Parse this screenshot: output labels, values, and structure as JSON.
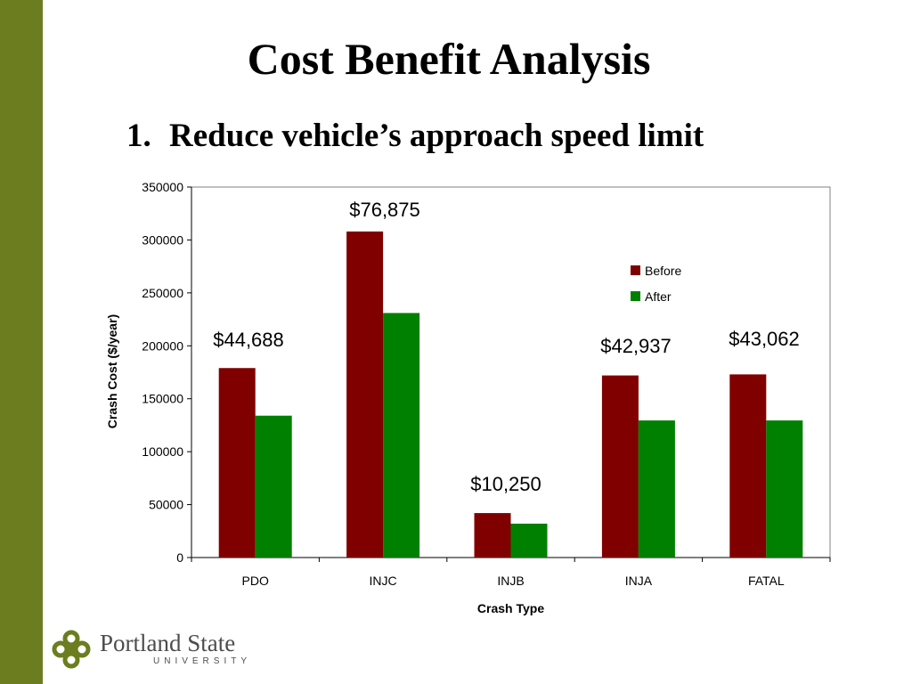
{
  "slide": {
    "title": "Cost Benefit Analysis",
    "subtitle_number": "1.",
    "subtitle": "Reduce vehicle’s approach speed limit"
  },
  "logo": {
    "name": "Portland State",
    "sub": "UNIVERSITY",
    "colors": {
      "mark": "#6b7d1f",
      "bar": "#6b7d1f"
    }
  },
  "chart_data": {
    "type": "bar",
    "categories": [
      "PDO",
      "INJC",
      "INJB",
      "INJA",
      "FATAL"
    ],
    "series": [
      {
        "name": "Before",
        "color": "#800000",
        "values": [
          179000,
          308000,
          42000,
          172000,
          173000
        ]
      },
      {
        "name": "After",
        "color": "#008000",
        "values": [
          134000,
          231000,
          32000,
          129500,
          129500
        ]
      }
    ],
    "annotations": [
      "$44,688",
      "$76,875",
      "$10,250",
      "$42,937",
      "$43,062"
    ],
    "xlabel": "Crash Type",
    "ylabel": "Crash Cost ($/year)",
    "ylim": [
      0,
      350000
    ],
    "yticks": [
      0,
      50000,
      100000,
      150000,
      200000,
      250000,
      300000,
      350000
    ],
    "grid": false,
    "legend": "right"
  }
}
